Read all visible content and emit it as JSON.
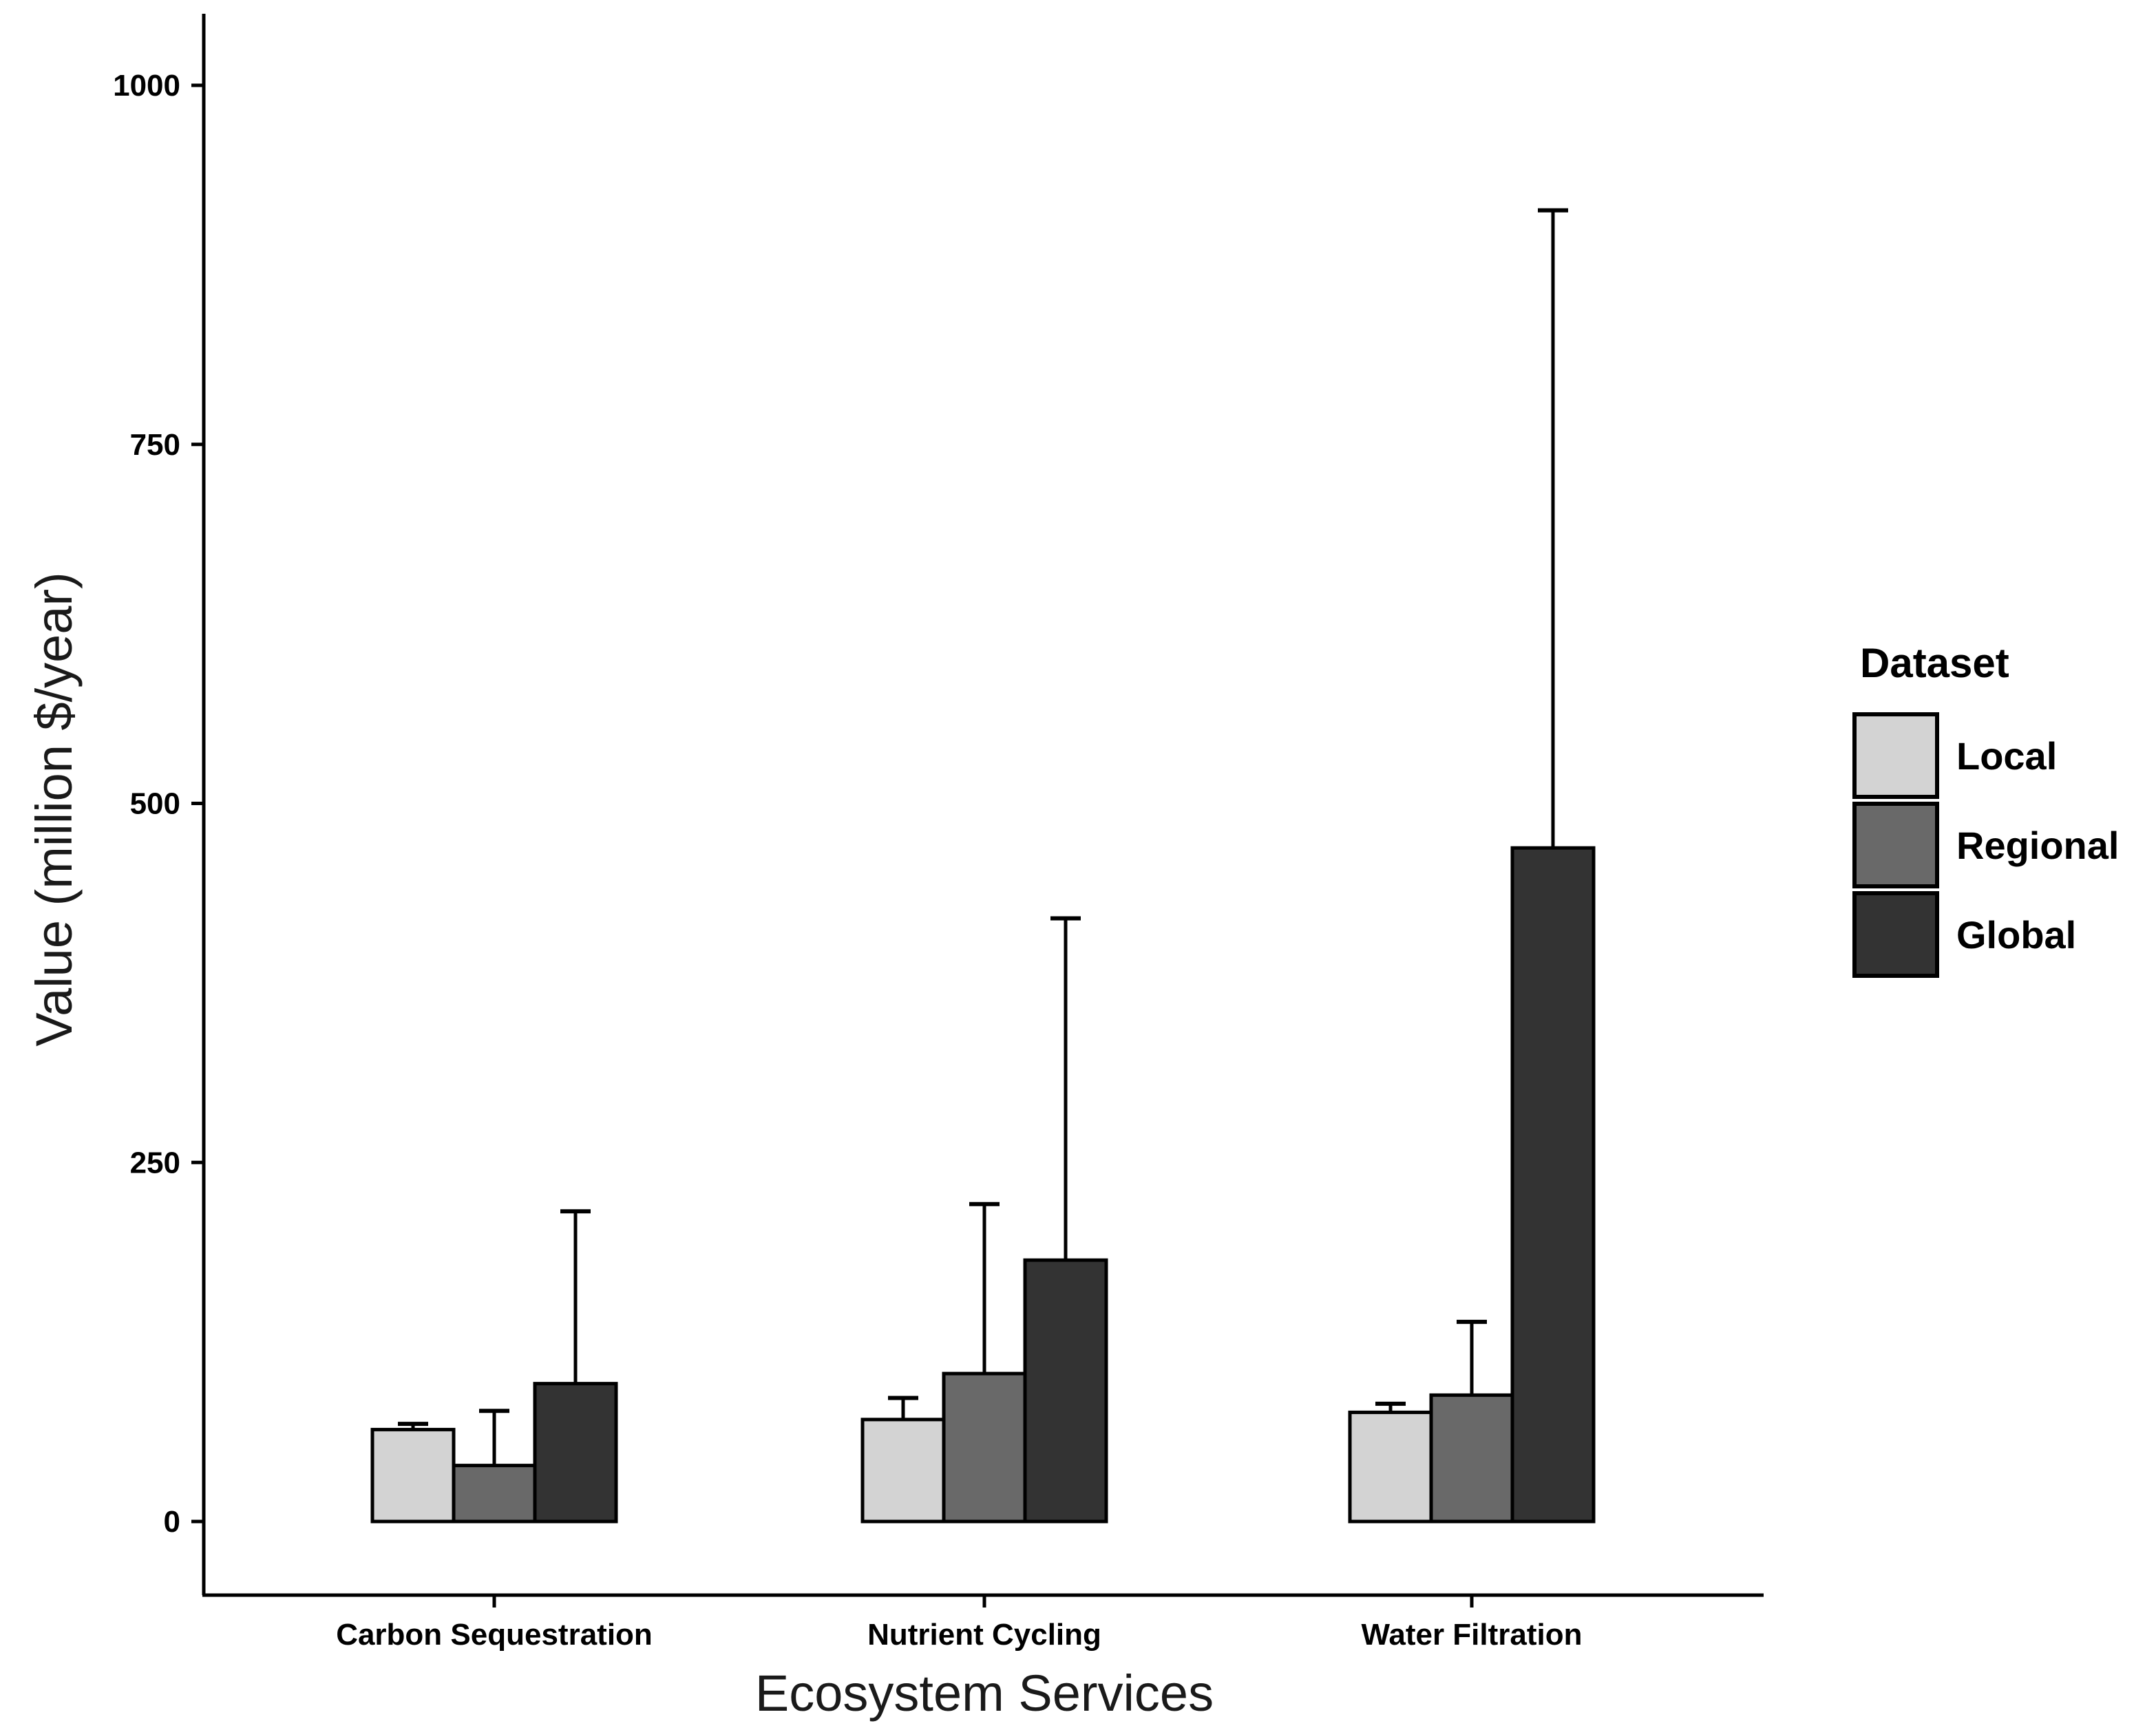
{
  "chart_data": {
    "type": "bar",
    "title": "",
    "xlabel": "Ecosystem Services",
    "ylabel": "Value (million $/year)",
    "ylim": [
      -50,
      1050
    ],
    "yticks": [
      0,
      250,
      500,
      750,
      1000
    ],
    "categories": [
      "Carbon Sequestration",
      "Nutrient Cycling",
      "Water Filtration"
    ],
    "series": [
      {
        "name": "Local",
        "color": "#d3d3d3",
        "values": [
          64,
          71,
          76
        ],
        "error_upper": [
          68,
          86,
          82
        ]
      },
      {
        "name": "Regional",
        "color": "#696969",
        "values": [
          39,
          103,
          88
        ],
        "error_upper": [
          77,
          221,
          139
        ]
      },
      {
        "name": "Global",
        "color": "#333333",
        "values": [
          96,
          182,
          469
        ],
        "error_upper": [
          216,
          420,
          913
        ]
      }
    ],
    "legend": {
      "title": "Dataset",
      "position": "right"
    },
    "grid": false
  }
}
